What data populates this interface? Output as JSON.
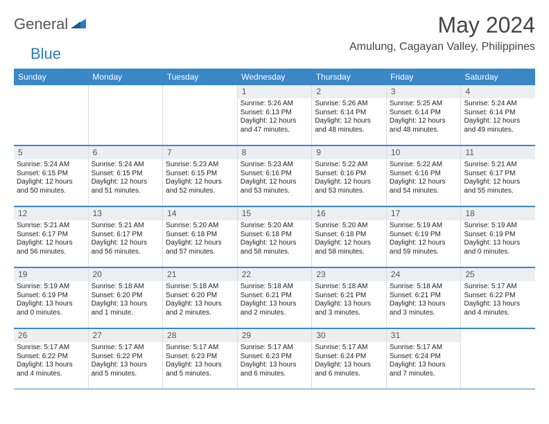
{
  "brand": {
    "part1": "General",
    "part2": "Blue"
  },
  "title": "May 2024",
  "location": "Amulung, Cagayan Valley, Philippines",
  "colors": {
    "accent": "#3a87c8",
    "header_bg": "#eceff1",
    "text": "#222222",
    "brand_gray": "#555555",
    "brand_blue": "#2b7bbf"
  },
  "fonts": {
    "base_family": "Arial",
    "title_size": 32,
    "dow_size": 12,
    "body_size": 10
  },
  "days_of_week": [
    "Sunday",
    "Monday",
    "Tuesday",
    "Wednesday",
    "Thursday",
    "Friday",
    "Saturday"
  ],
  "weeks": [
    [
      {
        "n": "",
        "sr": "",
        "ss": "",
        "dl": ""
      },
      {
        "n": "",
        "sr": "",
        "ss": "",
        "dl": ""
      },
      {
        "n": "",
        "sr": "",
        "ss": "",
        "dl": ""
      },
      {
        "n": "1",
        "sr": "Sunrise: 5:26 AM",
        "ss": "Sunset: 6:13 PM",
        "dl": "Daylight: 12 hours and 47 minutes."
      },
      {
        "n": "2",
        "sr": "Sunrise: 5:26 AM",
        "ss": "Sunset: 6:14 PM",
        "dl": "Daylight: 12 hours and 48 minutes."
      },
      {
        "n": "3",
        "sr": "Sunrise: 5:25 AM",
        "ss": "Sunset: 6:14 PM",
        "dl": "Daylight: 12 hours and 48 minutes."
      },
      {
        "n": "4",
        "sr": "Sunrise: 5:24 AM",
        "ss": "Sunset: 6:14 PM",
        "dl": "Daylight: 12 hours and 49 minutes."
      }
    ],
    [
      {
        "n": "5",
        "sr": "Sunrise: 5:24 AM",
        "ss": "Sunset: 6:15 PM",
        "dl": "Daylight: 12 hours and 50 minutes."
      },
      {
        "n": "6",
        "sr": "Sunrise: 5:24 AM",
        "ss": "Sunset: 6:15 PM",
        "dl": "Daylight: 12 hours and 51 minutes."
      },
      {
        "n": "7",
        "sr": "Sunrise: 5:23 AM",
        "ss": "Sunset: 6:15 PM",
        "dl": "Daylight: 12 hours and 52 minutes."
      },
      {
        "n": "8",
        "sr": "Sunrise: 5:23 AM",
        "ss": "Sunset: 6:16 PM",
        "dl": "Daylight: 12 hours and 53 minutes."
      },
      {
        "n": "9",
        "sr": "Sunrise: 5:22 AM",
        "ss": "Sunset: 6:16 PM",
        "dl": "Daylight: 12 hours and 53 minutes."
      },
      {
        "n": "10",
        "sr": "Sunrise: 5:22 AM",
        "ss": "Sunset: 6:16 PM",
        "dl": "Daylight: 12 hours and 54 minutes."
      },
      {
        "n": "11",
        "sr": "Sunrise: 5:21 AM",
        "ss": "Sunset: 6:17 PM",
        "dl": "Daylight: 12 hours and 55 minutes."
      }
    ],
    [
      {
        "n": "12",
        "sr": "Sunrise: 5:21 AM",
        "ss": "Sunset: 6:17 PM",
        "dl": "Daylight: 12 hours and 56 minutes."
      },
      {
        "n": "13",
        "sr": "Sunrise: 5:21 AM",
        "ss": "Sunset: 6:17 PM",
        "dl": "Daylight: 12 hours and 56 minutes."
      },
      {
        "n": "14",
        "sr": "Sunrise: 5:20 AM",
        "ss": "Sunset: 6:18 PM",
        "dl": "Daylight: 12 hours and 57 minutes."
      },
      {
        "n": "15",
        "sr": "Sunrise: 5:20 AM",
        "ss": "Sunset: 6:18 PM",
        "dl": "Daylight: 12 hours and 58 minutes."
      },
      {
        "n": "16",
        "sr": "Sunrise: 5:20 AM",
        "ss": "Sunset: 6:18 PM",
        "dl": "Daylight: 12 hours and 58 minutes."
      },
      {
        "n": "17",
        "sr": "Sunrise: 5:19 AM",
        "ss": "Sunset: 6:19 PM",
        "dl": "Daylight: 12 hours and 59 minutes."
      },
      {
        "n": "18",
        "sr": "Sunrise: 5:19 AM",
        "ss": "Sunset: 6:19 PM",
        "dl": "Daylight: 13 hours and 0 minutes."
      }
    ],
    [
      {
        "n": "19",
        "sr": "Sunrise: 5:19 AM",
        "ss": "Sunset: 6:19 PM",
        "dl": "Daylight: 13 hours and 0 minutes."
      },
      {
        "n": "20",
        "sr": "Sunrise: 5:18 AM",
        "ss": "Sunset: 6:20 PM",
        "dl": "Daylight: 13 hours and 1 minute."
      },
      {
        "n": "21",
        "sr": "Sunrise: 5:18 AM",
        "ss": "Sunset: 6:20 PM",
        "dl": "Daylight: 13 hours and 2 minutes."
      },
      {
        "n": "22",
        "sr": "Sunrise: 5:18 AM",
        "ss": "Sunset: 6:21 PM",
        "dl": "Daylight: 13 hours and 2 minutes."
      },
      {
        "n": "23",
        "sr": "Sunrise: 5:18 AM",
        "ss": "Sunset: 6:21 PM",
        "dl": "Daylight: 13 hours and 3 minutes."
      },
      {
        "n": "24",
        "sr": "Sunrise: 5:18 AM",
        "ss": "Sunset: 6:21 PM",
        "dl": "Daylight: 13 hours and 3 minutes."
      },
      {
        "n": "25",
        "sr": "Sunrise: 5:17 AM",
        "ss": "Sunset: 6:22 PM",
        "dl": "Daylight: 13 hours and 4 minutes."
      }
    ],
    [
      {
        "n": "26",
        "sr": "Sunrise: 5:17 AM",
        "ss": "Sunset: 6:22 PM",
        "dl": "Daylight: 13 hours and 4 minutes."
      },
      {
        "n": "27",
        "sr": "Sunrise: 5:17 AM",
        "ss": "Sunset: 6:22 PM",
        "dl": "Daylight: 13 hours and 5 minutes."
      },
      {
        "n": "28",
        "sr": "Sunrise: 5:17 AM",
        "ss": "Sunset: 6:23 PM",
        "dl": "Daylight: 13 hours and 5 minutes."
      },
      {
        "n": "29",
        "sr": "Sunrise: 5:17 AM",
        "ss": "Sunset: 6:23 PM",
        "dl": "Daylight: 13 hours and 6 minutes."
      },
      {
        "n": "30",
        "sr": "Sunrise: 5:17 AM",
        "ss": "Sunset: 6:24 PM",
        "dl": "Daylight: 13 hours and 6 minutes."
      },
      {
        "n": "31",
        "sr": "Sunrise: 5:17 AM",
        "ss": "Sunset: 6:24 PM",
        "dl": "Daylight: 13 hours and 7 minutes."
      },
      {
        "n": "",
        "sr": "",
        "ss": "",
        "dl": ""
      }
    ]
  ]
}
